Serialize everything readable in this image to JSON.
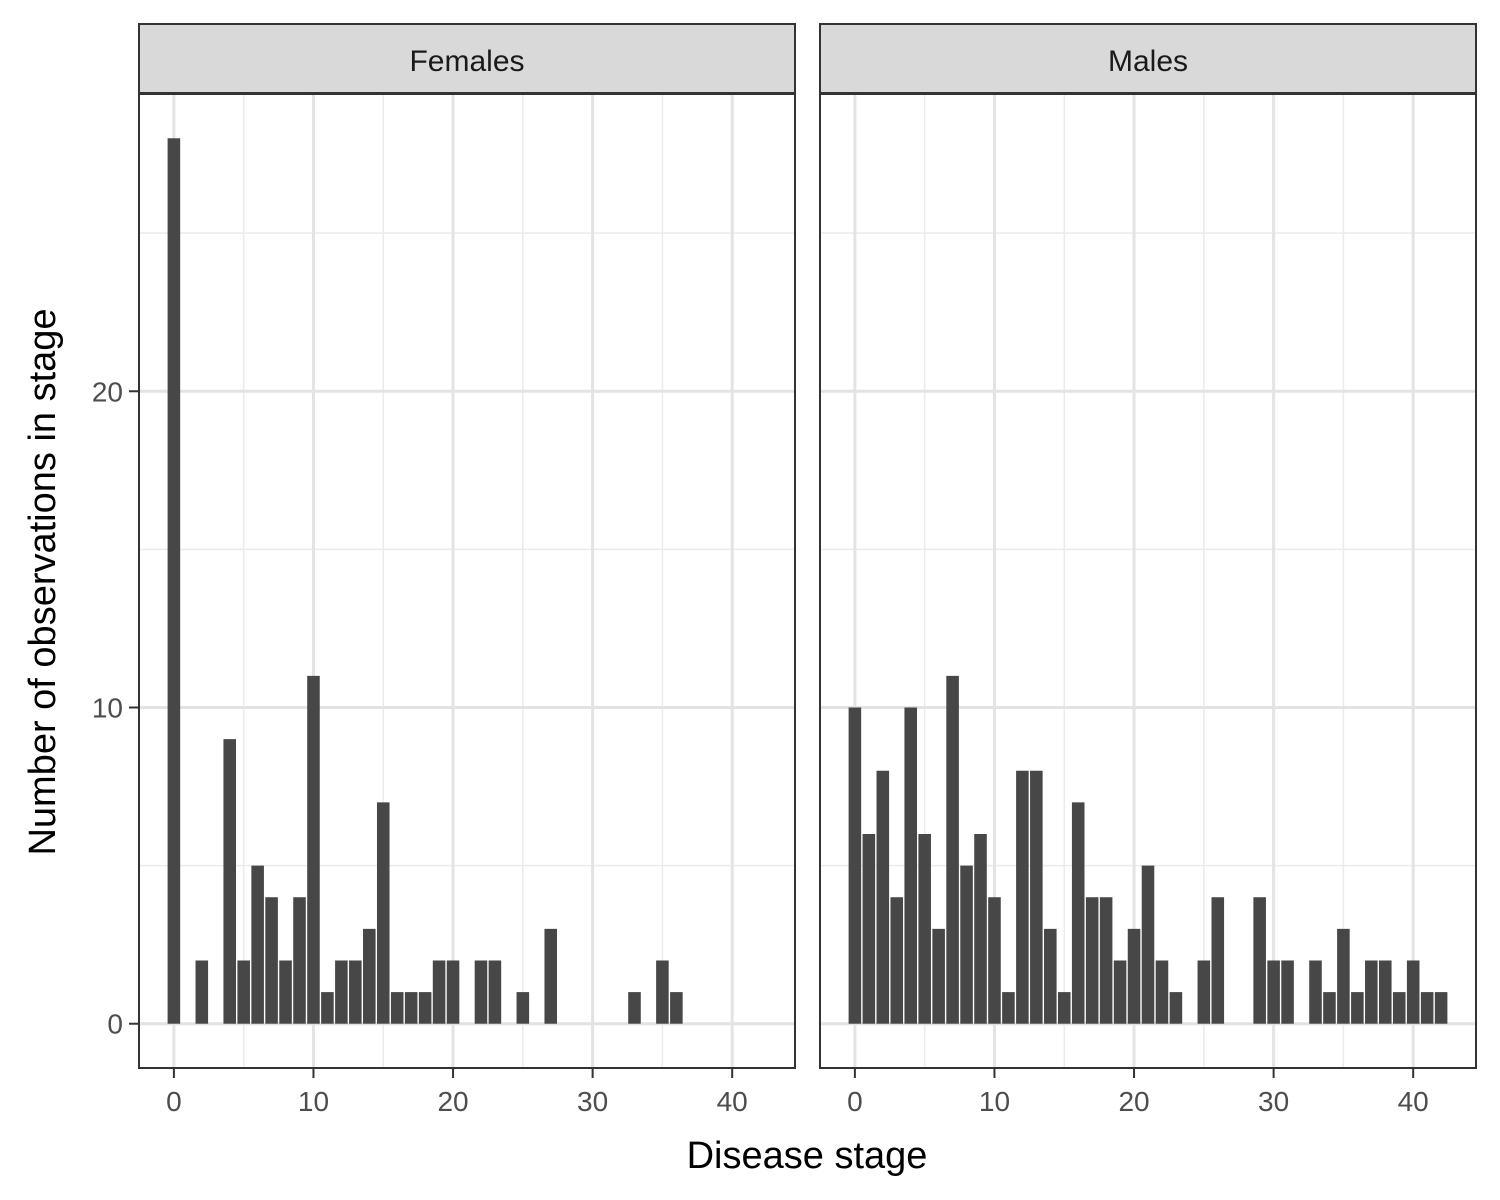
{
  "chart_data": {
    "type": "bar",
    "xlabel": "Disease stage",
    "ylabel": "Number of observations in stage",
    "xlim": [
      -2.5,
      44.5
    ],
    "ylim": [
      -1.4,
      29.4
    ],
    "x_ticks": [
      0,
      10,
      20,
      30,
      40
    ],
    "y_ticks": [
      0,
      10,
      20
    ],
    "grid": true,
    "bar_color": "#474747",
    "panels": [
      {
        "name": "Females",
        "x": [
          0,
          2,
          4,
          5,
          6,
          7,
          8,
          9,
          10,
          11,
          12,
          13,
          14,
          15,
          16,
          17,
          18,
          19,
          20,
          22,
          23,
          25,
          27,
          33,
          35,
          36
        ],
        "values": [
          28,
          2,
          9,
          2,
          5,
          4,
          2,
          4,
          11,
          1,
          2,
          2,
          3,
          7,
          1,
          1,
          1,
          2,
          2,
          2,
          2,
          1,
          3,
          1,
          2,
          1
        ]
      },
      {
        "name": "Males",
        "x": [
          0,
          1,
          2,
          3,
          4,
          5,
          6,
          7,
          8,
          9,
          10,
          11,
          12,
          13,
          14,
          15,
          16,
          17,
          18,
          19,
          20,
          21,
          22,
          23,
          25,
          26,
          29,
          30,
          31,
          33,
          34,
          35,
          36,
          37,
          38,
          39,
          40,
          41,
          42
        ],
        "values": [
          10,
          6,
          8,
          4,
          10,
          6,
          3,
          11,
          5,
          6,
          4,
          1,
          8,
          8,
          3,
          1,
          7,
          4,
          4,
          2,
          3,
          5,
          2,
          1,
          2,
          4,
          4,
          2,
          2,
          2,
          1,
          3,
          1,
          2,
          2,
          1,
          2,
          1,
          1
        ]
      }
    ]
  }
}
